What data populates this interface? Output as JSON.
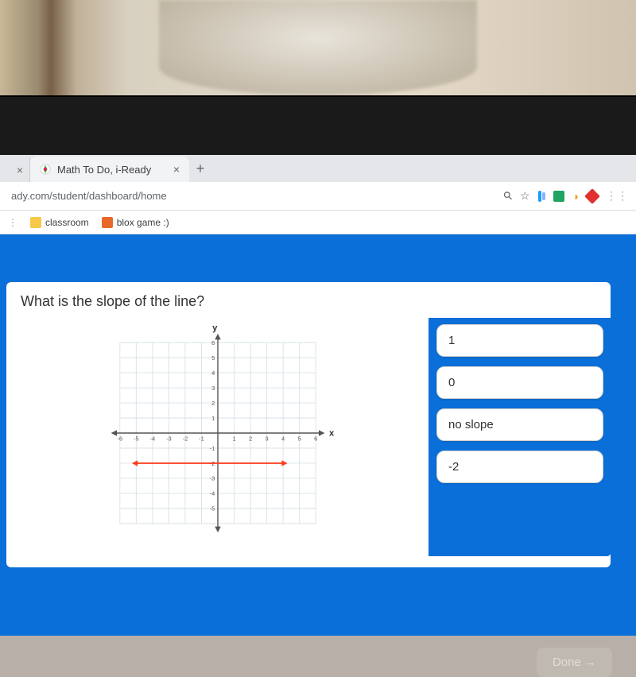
{
  "browser": {
    "tab": {
      "title": "Math To Do, i-Ready",
      "close": "×"
    },
    "newtab": "+",
    "prev_tab_close": "×",
    "url": "ady.com/student/dashboard/home",
    "addr_icons": {
      "search": "⚲",
      "star": "☆"
    },
    "ext_colors": [
      "#1a9cff",
      "#60b040",
      "#f0a020",
      "#e03030",
      "#9aa0a6"
    ],
    "bookmarks": [
      {
        "label": "classroom",
        "color": "#f7c948"
      },
      {
        "label": "blox game :)",
        "color": "#e86a2a"
      }
    ]
  },
  "question": "What is the slope of the line?",
  "answers": [
    "1",
    "0",
    "no slope",
    "-2"
  ],
  "done_label": "Done →",
  "graph": {
    "type": "line",
    "x_label": "x",
    "y_label": "y",
    "xlim": [
      -6,
      6
    ],
    "ylim": [
      -6,
      6
    ],
    "tick_step": 1,
    "x_ticks": [
      -6,
      -5,
      -4,
      -3,
      -2,
      -1,
      1,
      2,
      3,
      4,
      5,
      6
    ],
    "y_ticks": [
      -5,
      -4,
      -3,
      -2,
      -1,
      1,
      2,
      3,
      4,
      5,
      6
    ],
    "grid_color": "#d9e2e8",
    "axis_color": "#555555",
    "background_color": "#ffffff",
    "tick_font_size": 8,
    "label_font_size": 12,
    "line": {
      "y": -2,
      "x_start": -5,
      "x_end": 4,
      "color": "#ff4020",
      "width": 2,
      "arrowheads": true
    }
  }
}
